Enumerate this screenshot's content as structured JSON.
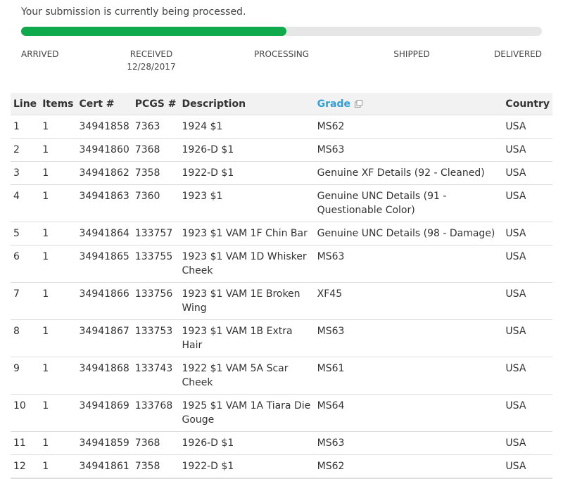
{
  "status_message": "Your submission is currently being processed.",
  "progress": {
    "fraction": 0.51,
    "color": "#0faa4b"
  },
  "stages": [
    {
      "label": "ARRIVED",
      "date": ""
    },
    {
      "label": "RECEIVED",
      "date": "12/28/2017"
    },
    {
      "label": "PROCESSING",
      "date": ""
    },
    {
      "label": "SHIPPED",
      "date": ""
    },
    {
      "label": "DELIVERED",
      "date": ""
    }
  ],
  "table": {
    "headers": [
      "Line",
      "Items",
      "Cert #",
      "PCGS #",
      "Description",
      "Grade",
      "Country"
    ],
    "grade_link_icon": "external-link-icon",
    "rows": [
      [
        "1",
        "1",
        "34941858",
        "7363",
        "1924 $1",
        "MS62",
        "USA"
      ],
      [
        "2",
        "1",
        "34941860",
        "7368",
        "1926-D $1",
        "MS63",
        "USA"
      ],
      [
        "3",
        "1",
        "34941862",
        "7358",
        "1922-D $1",
        "Genuine XF Details (92 - Cleaned)",
        "USA"
      ],
      [
        "4",
        "1",
        "34941863",
        "7360",
        "1923 $1",
        "Genuine UNC Details (91 - Questionable Color)",
        "USA"
      ],
      [
        "5",
        "1",
        "34941864",
        "133757",
        "1923 $1 VAM 1F Chin Bar",
        "Genuine UNC Details (98 - Damage)",
        "USA"
      ],
      [
        "6",
        "1",
        "34941865",
        "133755",
        "1923 $1 VAM 1D Whisker Cheek",
        "MS63",
        "USA"
      ],
      [
        "7",
        "1",
        "34941866",
        "133756",
        "1923 $1 VAM 1E Broken Wing",
        "XF45",
        "USA"
      ],
      [
        "8",
        "1",
        "34941867",
        "133753",
        "1923 $1 VAM 1B Extra Hair",
        "MS63",
        "USA"
      ],
      [
        "9",
        "1",
        "34941868",
        "133743",
        "1922 $1 VAM 5A Scar Cheek",
        "MS61",
        "USA"
      ],
      [
        "10",
        "1",
        "34941869",
        "133768",
        "1925 $1 VAM 1A Tiara Die Gouge",
        "MS64",
        "USA"
      ],
      [
        "11",
        "1",
        "34941859",
        "7368",
        "1926-D $1",
        "MS63",
        "USA"
      ],
      [
        "12",
        "1",
        "34941861",
        "7358",
        "1922-D $1",
        "MS62",
        "USA"
      ]
    ]
  }
}
